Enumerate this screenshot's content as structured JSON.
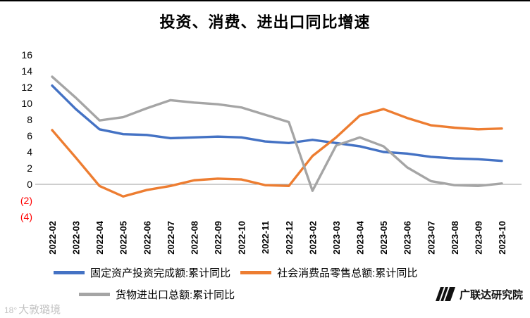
{
  "chart_data": {
    "type": "line",
    "title": "投资、消费、进出口同比增速",
    "categories": [
      "2022-02",
      "2022-03",
      "2022-04",
      "2022-05",
      "2022-06",
      "2022-07",
      "2022-08",
      "2022-09",
      "2022-10",
      "2022-11",
      "2022-12",
      "2023-02",
      "2023-03",
      "2023-04",
      "2023-05",
      "2023-06",
      "2023-07",
      "2023-08",
      "2023-09",
      "2023-10"
    ],
    "series": [
      {
        "name": "固定资产投资完成额:累计同比",
        "color": "#4472C4",
        "values": [
          12.2,
          9.3,
          6.8,
          6.2,
          6.1,
          5.7,
          5.8,
          5.9,
          5.8,
          5.3,
          5.1,
          5.5,
          5.1,
          4.7,
          4.0,
          3.8,
          3.4,
          3.2,
          3.1,
          2.9
        ]
      },
      {
        "name": "社会消费品零售总额:累计同比",
        "color": "#ED7D31",
        "values": [
          6.7,
          3.3,
          -0.2,
          -1.5,
          -0.7,
          -0.2,
          0.5,
          0.7,
          0.6,
          -0.1,
          -0.2,
          3.5,
          5.8,
          8.5,
          9.3,
          8.2,
          7.3,
          7.0,
          6.8,
          6.9
        ]
      },
      {
        "name": "货物进出口总额:累计同比",
        "color": "#A5A5A5",
        "values": [
          13.3,
          10.7,
          7.9,
          8.3,
          9.4,
          10.4,
          10.1,
          9.9,
          9.5,
          8.6,
          7.7,
          -0.8,
          4.8,
          5.8,
          4.7,
          2.1,
          0.4,
          -0.1,
          -0.2,
          0.1
        ]
      }
    ],
    "y_axis": {
      "min": -4,
      "max": 16,
      "tick_step": 2,
      "negative_label_color": "#FF0000",
      "ticks": [
        {
          "label": "16",
          "value": 16,
          "color": "#000000"
        },
        {
          "label": "14",
          "value": 14,
          "color": "#000000"
        },
        {
          "label": "12",
          "value": 12,
          "color": "#000000"
        },
        {
          "label": "10",
          "value": 10,
          "color": "#000000"
        },
        {
          "label": "8",
          "value": 8,
          "color": "#000000"
        },
        {
          "label": "6",
          "value": 6,
          "color": "#000000"
        },
        {
          "label": "4",
          "value": 4,
          "color": "#000000"
        },
        {
          "label": "2",
          "value": 2,
          "color": "#000000"
        },
        {
          "label": "0",
          "value": 0,
          "color": "#000000"
        },
        {
          "label": "(2)",
          "value": -2,
          "color": "#FF0000"
        },
        {
          "label": "(4)",
          "value": -4,
          "color": "#FF0000"
        }
      ]
    },
    "grid": false,
    "legend_position": "bottom",
    "x_labels_rotated": true
  },
  "footer": {
    "watermark_prefix": "18°",
    "watermark": "大敦璐境",
    "brand": "广联达研究院"
  }
}
